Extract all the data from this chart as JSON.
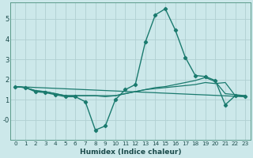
{
  "xlabel": "Humidex (Indice chaleur)",
  "bg_color": "#cce8ea",
  "grid_color": "#b0d0d2",
  "line_color": "#1a7a6e",
  "xlim": [
    -0.5,
    23.5
  ],
  "ylim": [
    -1.0,
    5.8
  ],
  "yticks": [
    0,
    1,
    2,
    3,
    4,
    5
  ],
  "ytick_labels": [
    "-0",
    "1",
    "2",
    "3",
    "4",
    "5"
  ],
  "xticks": [
    0,
    1,
    2,
    3,
    4,
    5,
    6,
    7,
    8,
    9,
    10,
    11,
    12,
    13,
    14,
    15,
    16,
    17,
    18,
    19,
    20,
    21,
    22,
    23
  ],
  "series_main": {
    "x": [
      0,
      1,
      2,
      3,
      4,
      5,
      6,
      7,
      8,
      9,
      10,
      11,
      12,
      13,
      14,
      15,
      16,
      17,
      18,
      19,
      20,
      21,
      22,
      23
    ],
    "y": [
      1.65,
      1.6,
      1.4,
      1.35,
      1.25,
      1.15,
      1.15,
      0.9,
      -0.5,
      -0.3,
      1.0,
      1.5,
      1.75,
      3.85,
      5.2,
      5.5,
      4.45,
      3.1,
      2.2,
      2.15,
      1.95,
      0.75,
      1.2,
      1.15
    ]
  },
  "series_flat1": {
    "x": [
      0,
      1,
      2,
      3,
      4,
      5,
      6,
      7,
      8,
      9,
      10,
      11,
      12,
      13,
      14,
      15,
      16,
      17,
      18,
      19,
      20,
      21,
      22,
      23
    ],
    "y": [
      1.65,
      1.6,
      1.45,
      1.4,
      1.3,
      1.2,
      1.2,
      1.2,
      1.2,
      1.2,
      1.2,
      1.3,
      1.4,
      1.5,
      1.6,
      1.65,
      1.75,
      1.85,
      1.95,
      2.1,
      1.9,
      1.3,
      1.25,
      1.2
    ]
  },
  "series_flat2": {
    "x": [
      0,
      1,
      2,
      3,
      4,
      5,
      6,
      7,
      8,
      9,
      10,
      11,
      12,
      13,
      14,
      15,
      16,
      17,
      18,
      19,
      20,
      21,
      22,
      23
    ],
    "y": [
      1.65,
      1.6,
      1.45,
      1.4,
      1.3,
      1.2,
      1.2,
      1.2,
      1.2,
      1.15,
      1.2,
      1.3,
      1.4,
      1.5,
      1.55,
      1.6,
      1.65,
      1.7,
      1.75,
      1.85,
      1.8,
      1.85,
      1.2,
      1.2
    ]
  },
  "series_flat3": {
    "x": [
      0,
      23
    ],
    "y": [
      1.65,
      1.15
    ]
  }
}
